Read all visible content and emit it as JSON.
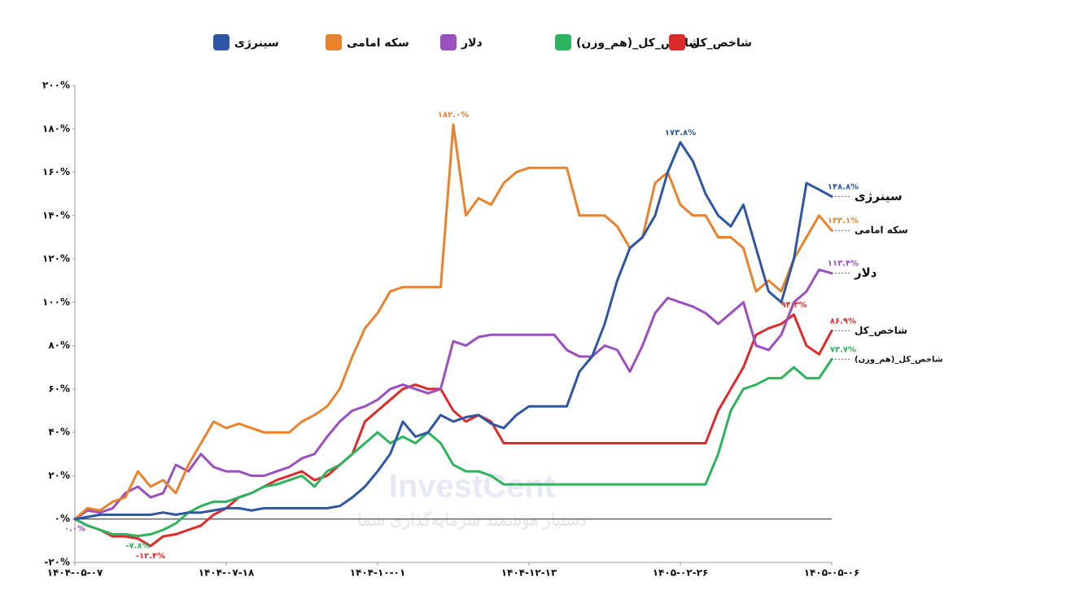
{
  "chart_data": {
    "type": "line",
    "watermark": {
      "brand": "InvestCent",
      "tagline": "دستیار هوشمند سرمایه‌گذاری شما"
    },
    "categories": [
      "۱۴۰۴-۰۵-۰۷",
      null,
      null,
      null,
      null,
      null,
      null,
      null,
      null,
      null,
      null,
      null,
      "۱۴۰۴-۰۷-۱۸",
      null,
      null,
      null,
      null,
      null,
      null,
      null,
      null,
      null,
      null,
      null,
      "۱۴۰۴-۱۰-۰۱",
      null,
      null,
      null,
      null,
      null,
      null,
      null,
      null,
      null,
      null,
      null,
      "۱۴۰۴-۱۲-۱۳",
      null,
      null,
      null,
      null,
      null,
      null,
      null,
      null,
      null,
      null,
      null,
      "۱۴۰۵-۰۲-۲۶",
      null,
      null,
      null,
      null,
      null,
      null,
      null,
      null,
      null,
      null,
      null,
      "۱۴۰۵-۰۵-۰۶"
    ],
    "ylim": [
      -20,
      200
    ],
    "yticks": [
      {
        "value": -20,
        "label": "-۲۰%"
      },
      {
        "value": 0,
        "label": "۰%"
      },
      {
        "value": 20,
        "label": "۲۰%"
      },
      {
        "value": 40,
        "label": "۴۰%"
      },
      {
        "value": 60,
        "label": "۶۰%"
      },
      {
        "value": 80,
        "label": "۸۰%"
      },
      {
        "value": 100,
        "label": "۱۰۰%"
      },
      {
        "value": 120,
        "label": "۱۲۰%"
      },
      {
        "value": 140,
        "label": "۱۴۰%"
      },
      {
        "value": 160,
        "label": "۱۶۰%"
      },
      {
        "value": 180,
        "label": "۱۸۰%"
      },
      {
        "value": 200,
        "label": "۲۰۰%"
      }
    ],
    "grid": false,
    "series": [
      {
        "name": "سینرژی",
        "color": "#2f56a3",
        "values": [
          0,
          1,
          2,
          2,
          2,
          2,
          2,
          3,
          2,
          3,
          3,
          4,
          5,
          5,
          4,
          5,
          5,
          5,
          5,
          5,
          5,
          6,
          10,
          15,
          22,
          30,
          45,
          38,
          40,
          48,
          45,
          47,
          48,
          44,
          42,
          48,
          52,
          52,
          52,
          52,
          68,
          75,
          90,
          110,
          125,
          130,
          140,
          160,
          173.8,
          165,
          150,
          140,
          135,
          145,
          125,
          105,
          100,
          120,
          155,
          152,
          148.8
        ],
        "value_labels": [
          null,
          null,
          null,
          null,
          null,
          null,
          null,
          null,
          null,
          null,
          null,
          null,
          null,
          null,
          null,
          null,
          null,
          null,
          null,
          null,
          null,
          null,
          null,
          null,
          null,
          null,
          null,
          null,
          null,
          null,
          null,
          null,
          null,
          null,
          null,
          null,
          null,
          null,
          null,
          null,
          null,
          null,
          null,
          null,
          null,
          null,
          null,
          null,
          "۱۷۳.۸%",
          null,
          null,
          null,
          null,
          null,
          null,
          null,
          null,
          null,
          null,
          null,
          "۱۴۸.۸%"
        ]
      },
      {
        "name": "سکه امامی",
        "color": "#e8822d",
        "values": [
          0,
          5,
          4,
          8,
          10,
          22,
          15,
          18,
          12,
          25,
          35,
          45,
          42,
          44,
          42,
          40,
          40,
          40,
          45,
          48,
          52,
          60,
          75,
          88,
          95,
          105,
          107,
          107,
          107,
          107,
          182.0,
          140,
          148,
          145,
          155,
          160,
          162,
          162,
          162,
          162,
          140,
          140,
          140,
          135,
          125,
          130,
          155,
          160,
          145,
          140,
          140,
          130,
          130,
          125,
          105,
          110,
          105,
          120,
          130,
          140,
          133.1
        ],
        "value_labels": [
          null,
          null,
          null,
          null,
          null,
          null,
          null,
          null,
          null,
          null,
          null,
          null,
          null,
          null,
          null,
          null,
          null,
          null,
          null,
          null,
          null,
          null,
          null,
          null,
          null,
          null,
          null,
          null,
          null,
          null,
          "۱۸۲.۰%",
          null,
          null,
          null,
          null,
          null,
          null,
          null,
          null,
          null,
          null,
          null,
          null,
          null,
          null,
          null,
          null,
          null,
          null,
          null,
          null,
          null,
          null,
          null,
          null,
          null,
          null,
          null,
          null,
          null,
          "۱۳۳.۱%"
        ]
      },
      {
        "name": "دلار",
        "color": "#9b4fc0",
        "values": [
          0,
          4,
          3,
          5,
          12,
          15,
          10,
          12,
          25,
          22,
          30,
          24,
          22,
          22,
          20,
          20,
          22,
          24,
          28,
          30,
          38,
          45,
          50,
          52,
          55,
          60,
          62,
          60,
          58,
          60,
          82,
          80,
          84,
          85,
          85,
          85,
          85,
          85,
          85,
          78,
          75,
          75,
          80,
          78,
          68,
          80,
          95,
          102,
          100,
          98,
          95,
          90,
          95,
          100,
          80,
          78,
          85,
          100,
          105,
          115,
          113.4
        ],
        "value_labels": [
          "۰.۰%",
          null,
          null,
          null,
          null,
          null,
          null,
          null,
          null,
          null,
          null,
          null,
          null,
          null,
          null,
          null,
          null,
          null,
          null,
          null,
          null,
          null,
          null,
          null,
          null,
          null,
          null,
          null,
          null,
          null,
          null,
          null,
          null,
          null,
          null,
          null,
          null,
          null,
          null,
          null,
          null,
          null,
          null,
          null,
          null,
          null,
          null,
          null,
          null,
          null,
          null,
          null,
          null,
          null,
          null,
          null,
          null,
          null,
          null,
          null,
          "۱۱۳.۴%"
        ]
      },
      {
        "name": "شاخص_کل_(هم_وزن)",
        "color": "#2db35d",
        "values": [
          0,
          -3,
          -5,
          -7,
          -7,
          -7.8,
          -7,
          -5,
          -2,
          3,
          6,
          8,
          8,
          10,
          12,
          15,
          16,
          18,
          20,
          15,
          22,
          25,
          30,
          35,
          40,
          35,
          38,
          35,
          40,
          35,
          25,
          22,
          22,
          20,
          16,
          16,
          16,
          16,
          16,
          16,
          16,
          16,
          16,
          16,
          16,
          16,
          16,
          16,
          16,
          16,
          16,
          30,
          50,
          60,
          62,
          65,
          65,
          70,
          65,
          65,
          73.7
        ],
        "value_labels": [
          null,
          null,
          null,
          null,
          null,
          "-۷.۸%",
          null,
          null,
          null,
          null,
          null,
          null,
          null,
          null,
          null,
          null,
          null,
          null,
          null,
          null,
          null,
          null,
          null,
          null,
          null,
          null,
          null,
          null,
          null,
          null,
          null,
          null,
          null,
          null,
          null,
          null,
          null,
          null,
          null,
          null,
          null,
          null,
          null,
          null,
          null,
          null,
          null,
          null,
          null,
          null,
          null,
          null,
          null,
          null,
          null,
          null,
          null,
          null,
          null,
          null,
          "۷۳.۷%"
        ]
      },
      {
        "name": "شاخص_کل",
        "color": "#dd2b2b",
        "values": [
          0,
          -3,
          -5,
          -8,
          -8,
          -9,
          -12.4,
          -8,
          -7,
          -5,
          -3,
          2,
          5,
          10,
          12,
          15,
          18,
          20,
          22,
          18,
          20,
          25,
          30,
          45,
          50,
          55,
          60,
          62,
          60,
          60,
          50,
          45,
          48,
          45,
          35,
          35,
          35,
          35,
          35,
          35,
          35,
          35,
          35,
          35,
          35,
          35,
          35,
          35,
          35,
          35,
          35,
          50,
          60,
          70,
          85,
          88,
          90,
          94.3,
          80,
          76,
          86.9
        ],
        "value_labels": [
          null,
          null,
          null,
          null,
          null,
          null,
          "-۱۲.۴%",
          null,
          null,
          null,
          null,
          null,
          null,
          null,
          null,
          null,
          null,
          null,
          null,
          null,
          null,
          null,
          null,
          null,
          null,
          null,
          null,
          null,
          null,
          null,
          null,
          null,
          null,
          null,
          null,
          null,
          null,
          null,
          null,
          null,
          null,
          null,
          null,
          null,
          null,
          null,
          null,
          null,
          null,
          null,
          null,
          null,
          null,
          null,
          null,
          null,
          null,
          "۹۴.۳%",
          null,
          null,
          "۸۶.۹%"
        ]
      }
    ]
  }
}
